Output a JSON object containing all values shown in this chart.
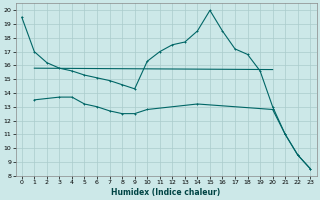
{
  "xlabel": "Humidex (Indice chaleur)",
  "background_color": "#cce8e8",
  "grid_color": "#aacccc",
  "line_color": "#006666",
  "xlim": [
    -0.5,
    23.5
  ],
  "ylim": [
    8,
    20.5
  ],
  "yticks": [
    8,
    9,
    10,
    11,
    12,
    13,
    14,
    15,
    16,
    17,
    18,
    19,
    20
  ],
  "xticks": [
    0,
    1,
    2,
    3,
    4,
    5,
    6,
    7,
    8,
    9,
    10,
    11,
    12,
    13,
    14,
    15,
    16,
    17,
    18,
    19,
    20,
    21,
    22,
    23
  ],
  "line1_x": [
    0,
    1,
    2,
    3,
    4,
    5,
    6,
    7,
    8,
    9,
    10,
    11,
    12,
    13,
    14,
    15,
    16,
    17,
    18,
    19,
    20,
    21,
    22,
    23
  ],
  "line1_y": [
    19.5,
    17.0,
    16.2,
    15.8,
    15.6,
    15.3,
    15.1,
    14.9,
    14.6,
    14.3,
    16.3,
    17.0,
    17.5,
    17.7,
    18.5,
    20.0,
    18.5,
    17.2,
    16.8,
    15.6,
    13.0,
    11.0,
    9.5,
    8.5
  ],
  "line2_x": [
    1,
    3,
    4,
    5,
    6,
    7,
    8,
    9,
    10,
    14,
    20,
    21,
    22,
    23
  ],
  "line2_y": [
    13.5,
    13.7,
    13.7,
    13.2,
    13.0,
    12.7,
    12.5,
    12.5,
    12.8,
    13.2,
    12.8,
    11.0,
    9.5,
    8.5
  ],
  "line3_x": [
    1,
    20
  ],
  "line3_y": [
    15.8,
    15.7
  ],
  "marker": "+"
}
